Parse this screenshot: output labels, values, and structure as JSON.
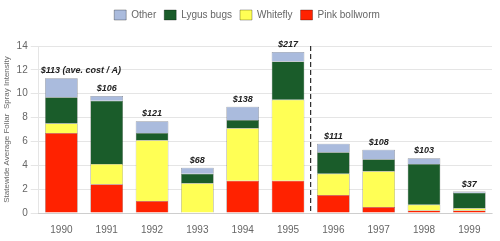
{
  "chart_data": {
    "type": "bar",
    "stacked": true,
    "categories": [
      "1990",
      "1991",
      "1992",
      "1993",
      "1994",
      "1995",
      "1996",
      "1997",
      "1998",
      "1999"
    ],
    "series": [
      {
        "name": "Pink bollworm",
        "color": "#ff2200",
        "values": [
          6.7,
          2.4,
          1.0,
          0.0,
          2.7,
          2.7,
          1.5,
          0.5,
          0.2,
          0.2
        ]
      },
      {
        "name": "Whitefly",
        "color": "#ffff55",
        "values": [
          0.8,
          1.7,
          5.1,
          2.5,
          4.4,
          6.8,
          1.8,
          3.0,
          0.5,
          0.2
        ]
      },
      {
        "name": "Lygus bugs",
        "color": "#1a5c2a",
        "values": [
          2.2,
          5.3,
          0.6,
          0.8,
          0.7,
          3.2,
          1.8,
          1.0,
          3.4,
          1.3
        ]
      },
      {
        "name": "Other",
        "color": "#aabbdd",
        "values": [
          1.6,
          0.4,
          1.0,
          0.5,
          1.1,
          0.8,
          0.7,
          0.8,
          0.5,
          0.1
        ]
      }
    ],
    "ylabel": "Statewide Average Foliar  Spray Intensity",
    "ylim": [
      0,
      14
    ],
    "yticks": [
      0,
      2,
      4,
      6,
      8,
      10,
      12,
      14
    ],
    "grid": true,
    "legend": "top",
    "annotations": [
      {
        "x": "1990",
        "text": "$113 (ave. cost / A)"
      },
      {
        "x": "1991",
        "text": "$106"
      },
      {
        "x": "1992",
        "text": "$121"
      },
      {
        "x": "1993",
        "text": "$68"
      },
      {
        "x": "1994",
        "text": "$138"
      },
      {
        "x": "1995",
        "text": "$217"
      },
      {
        "x": "1996",
        "text": "$111"
      },
      {
        "x": "1997",
        "text": "$108"
      },
      {
        "x": "1998",
        "text": "$103"
      },
      {
        "x": "1999",
        "text": "$37"
      },
      {
        "x_between": [
          "1995",
          "1996"
        ],
        "line_style": "dashed"
      }
    ]
  }
}
